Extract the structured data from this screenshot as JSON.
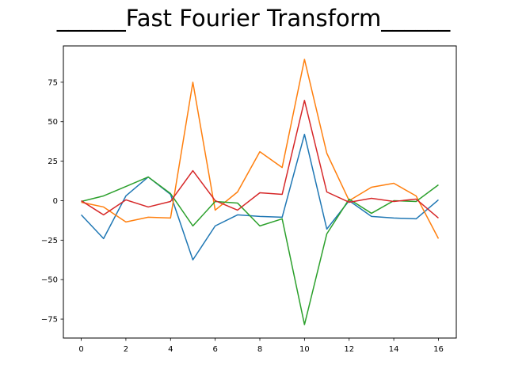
{
  "chart_data": {
    "type": "line",
    "title": "______Fast Fourier Transform______",
    "xlabel": "",
    "ylabel": "",
    "xlim": [
      -0.8,
      16.8
    ],
    "ylim": [
      -87,
      98
    ],
    "xticks": [
      0,
      2,
      4,
      6,
      8,
      10,
      12,
      14,
      16
    ],
    "yticks": [
      -75,
      -50,
      -25,
      0,
      25,
      50,
      75
    ],
    "grid": false,
    "legend": "none",
    "x": [
      0,
      1,
      2,
      3,
      4,
      5,
      6,
      7,
      8,
      9,
      10,
      11,
      12,
      13,
      14,
      15,
      16
    ],
    "series": [
      {
        "color": "#1f77b4",
        "values": [
          -9,
          -24,
          3,
          15,
          4,
          -37.5,
          -16,
          -9,
          -10,
          -10.5,
          42,
          -18,
          0,
          -10,
          -11,
          -11.5,
          0.5
        ]
      },
      {
        "color": "#ff7f0e",
        "values": [
          -1,
          -4,
          -13.5,
          -10.5,
          -11,
          75,
          -6,
          5.5,
          31,
          21,
          89.5,
          30,
          0,
          8.5,
          11,
          3,
          -24
        ]
      },
      {
        "color": "#2ca02c",
        "values": [
          -0.5,
          3,
          9,
          15,
          4.5,
          -16,
          -0.5,
          -1.5,
          -16,
          -11.5,
          -78.5,
          -21,
          1,
          -8,
          0,
          -0.5,
          10
        ]
      },
      {
        "color": "#d62728",
        "values": [
          0,
          -9,
          0.5,
          -4,
          -0.5,
          19,
          0,
          -6,
          5,
          4,
          63.5,
          5.5,
          -1,
          1.5,
          -0.5,
          1,
          -11
        ]
      }
    ]
  }
}
